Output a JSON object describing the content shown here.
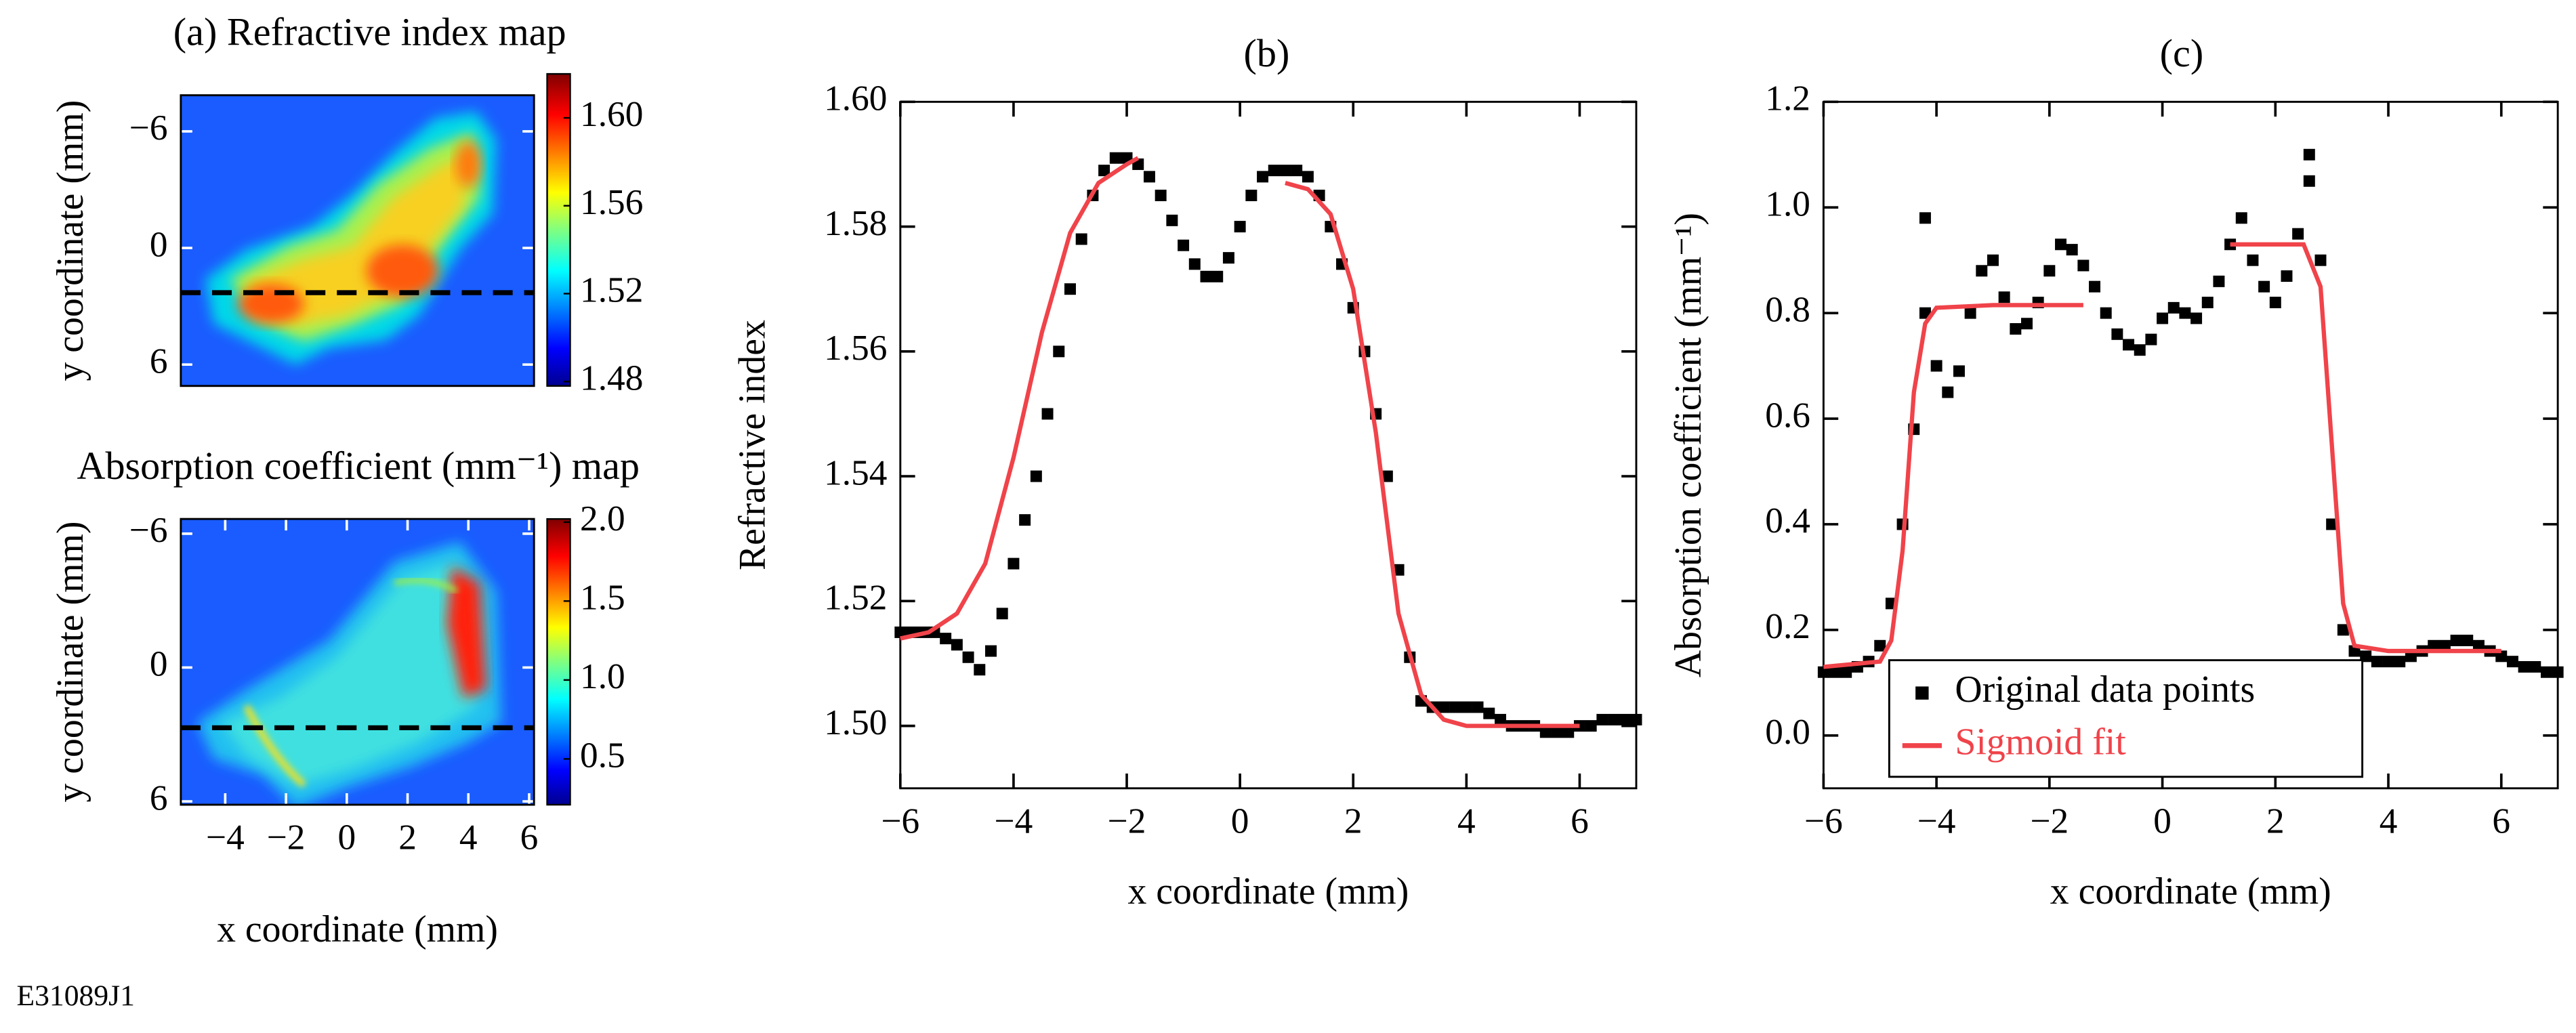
{
  "chart_data": [
    {
      "type": "heatmap",
      "title": "(a) Refractive index map",
      "ylabel": "y coordinate (mm)",
      "xlim": [
        -5.46,
        6.16
      ],
      "ylim": [
        -7.86,
        7.1
      ],
      "yticks": [
        {
          "value": -6,
          "label": "−6"
        },
        0,
        6
      ],
      "colorbar_lim": [
        1.478,
        1.62
      ],
      "colorbar_ticks": [
        {
          "value": 1.48,
          "label": "1.48"
        },
        {
          "value": 1.52,
          "label": "1.52"
        },
        {
          "value": 1.56,
          "label": "1.56"
        },
        {
          "value": 1.6,
          "label": "1.60"
        }
      ],
      "cut_line_y": 2.3
    },
    {
      "type": "heatmap",
      "title": "Absorption coefficient (mm⁻¹) map",
      "ylabel": "y coordinate (mm)",
      "xlabel": "x coordinate (mm)",
      "xlim": [
        -5.46,
        6.16
      ],
      "ylim": [
        -6.66,
        6.15
      ],
      "xticks": [
        {
          "value": -4,
          "label": "−4"
        },
        {
          "value": -2,
          "label": "−2"
        },
        0,
        2,
        4,
        6
      ],
      "yticks": [
        {
          "value": -6,
          "label": "−6"
        },
        0,
        6
      ],
      "colorbar_lim": [
        0.21,
        2.02
      ],
      "colorbar_ticks": [
        0.5,
        {
          "value": 1.0,
          "label": "1.0"
        },
        1.5,
        {
          "value": 2.0,
          "label": "2.0"
        }
      ],
      "cut_line_y": 2.7,
      "annotation": "E31089J1"
    },
    {
      "type": "scatter_line",
      "title": "(b)",
      "xlabel": "x coordinate (mm)",
      "ylabel": "Refractive index",
      "xlim": [
        -6,
        7
      ],
      "ylim": [
        1.49,
        1.6
      ],
      "xticks": [
        {
          "value": -6,
          "label": "−6"
        },
        {
          "value": -4,
          "label": "−4"
        },
        {
          "value": -2,
          "label": "−2"
        },
        0,
        2,
        4,
        6
      ],
      "yticks": [
        {
          "value": 1.5,
          "label": "1.50"
        },
        {
          "value": 1.52,
          "label": "1.52"
        },
        {
          "value": 1.54,
          "label": "1.54"
        },
        {
          "value": 1.56,
          "label": "1.56"
        },
        {
          "value": 1.58,
          "label": "1.58"
        },
        {
          "value": 1.6,
          "label": "1.60"
        }
      ],
      "series": [
        {
          "kind": "points",
          "color": "#000000",
          "x": [
            -6,
            -5.8,
            -5.6,
            -5.4,
            -5.2,
            -5,
            -4.8,
            -4.6,
            -4.4,
            -4.2,
            -4,
            -3.8,
            -3.6,
            -3.4,
            -3.2,
            -3,
            -2.8,
            -2.6,
            -2.4,
            -2.2,
            -2,
            -1.8,
            -1.6,
            -1.4,
            -1.2,
            -1,
            -0.8,
            -0.6,
            -0.4,
            -0.2,
            0,
            0.2,
            0.4,
            0.6,
            0.8,
            1,
            1.2,
            1.4,
            1.6,
            1.8,
            2,
            2.2,
            2.4,
            2.6,
            2.8,
            3,
            3.2,
            3.4,
            3.6,
            3.8,
            4,
            4.2,
            4.4,
            4.6,
            4.8,
            5,
            5.2,
            5.4,
            5.6,
            5.8,
            6,
            6.2,
            6.4,
            6.6,
            6.8,
            7
          ],
          "values": [
            1.515,
            1.515,
            1.515,
            1.515,
            1.514,
            1.513,
            1.511,
            1.509,
            1.512,
            1.518,
            1.526,
            1.533,
            1.54,
            1.55,
            1.56,
            1.57,
            1.578,
            1.585,
            1.589,
            1.591,
            1.591,
            1.59,
            1.588,
            1.585,
            1.581,
            1.577,
            1.574,
            1.572,
            1.572,
            1.575,
            1.58,
            1.585,
            1.588,
            1.589,
            1.589,
            1.589,
            1.588,
            1.585,
            1.58,
            1.574,
            1.567,
            1.56,
            1.55,
            1.54,
            1.525,
            1.511,
            1.504,
            1.503,
            1.503,
            1.503,
            1.503,
            1.503,
            1.502,
            1.501,
            1.5,
            1.5,
            1.5,
            1.499,
            1.499,
            1.499,
            1.5,
            1.5,
            1.501,
            1.501,
            1.501,
            1.501
          ]
        },
        {
          "kind": "line",
          "color": "#f0434a",
          "x": [
            -6,
            -5.5,
            -5,
            -4.5,
            -4,
            -3.5,
            -3,
            -2.5,
            -2,
            -1.8,
            -0.5,
            0.8,
            1.2,
            1.6,
            2,
            2.4,
            2.8,
            3.2,
            3.6,
            4,
            5,
            6
          ],
          "values": [
            1.514,
            1.515,
            1.518,
            1.526,
            1.543,
            1.563,
            1.579,
            1.587,
            1.59,
            1.591,
            null,
            1.587,
            1.586,
            1.582,
            1.57,
            1.547,
            1.518,
            1.505,
            1.501,
            1.5,
            1.5,
            1.5
          ]
        }
      ]
    },
    {
      "type": "scatter_line",
      "title": "(c)",
      "xlabel": "x coordinate (mm)",
      "ylabel": "Absorption coefficient (mm⁻¹)",
      "xlim": [
        -6,
        7
      ],
      "ylim": [
        -0.1,
        1.2
      ],
      "xticks": [
        {
          "value": -6,
          "label": "−6"
        },
        {
          "value": -4,
          "label": "−4"
        },
        {
          "value": -2,
          "label": "−2"
        },
        0,
        2,
        4,
        6
      ],
      "yticks": [
        {
          "value": 0,
          "label": "0.0"
        },
        0.2,
        0.4,
        0.6,
        0.8,
        {
          "value": 1.0,
          "label": "1.0"
        },
        1.2
      ],
      "legend": "bottom-left",
      "series": [
        {
          "kind": "points",
          "name": "Original data points",
          "color": "#000000",
          "x": [
            -6,
            -5.8,
            -5.6,
            -5.4,
            -5.2,
            -5,
            -4.8,
            -4.6,
            -4.4,
            -4.2,
            -4.2,
            -4,
            -3.8,
            -3.6,
            -3.4,
            -3.2,
            -3,
            -2.8,
            -2.6,
            -2.4,
            -2.2,
            -2,
            -1.8,
            -1.6,
            -1.4,
            -1.2,
            -1,
            -0.8,
            -0.6,
            -0.4,
            -0.2,
            0,
            0.2,
            0.4,
            0.6,
            0.8,
            1,
            1.2,
            1.4,
            1.6,
            1.8,
            2,
            2.2,
            2.4,
            2.6,
            2.6,
            2.8,
            3,
            3.2,
            3.4,
            3.6,
            3.8,
            4,
            4.2,
            4.4,
            4.6,
            4.8,
            5,
            5.2,
            5.4,
            5.6,
            5.8,
            6,
            6.2,
            6.4,
            6.6,
            6.8,
            7
          ],
          "values": [
            0.12,
            0.12,
            0.12,
            0.13,
            0.14,
            0.17,
            0.25,
            0.4,
            0.58,
            0.8,
            0.98,
            0.7,
            0.65,
            0.69,
            0.8,
            0.88,
            0.9,
            0.83,
            0.77,
            0.78,
            0.82,
            0.88,
            0.93,
            0.92,
            0.89,
            0.85,
            0.8,
            0.76,
            0.74,
            0.73,
            0.75,
            0.79,
            0.81,
            0.8,
            0.79,
            0.82,
            0.86,
            0.93,
            0.98,
            0.9,
            0.85,
            0.82,
            0.87,
            0.95,
            1.05,
            1.1,
            0.9,
            0.4,
            0.2,
            0.16,
            0.15,
            0.14,
            0.14,
            0.14,
            0.15,
            0.16,
            0.17,
            0.17,
            0.18,
            0.18,
            0.17,
            0.16,
            0.15,
            0.14,
            0.13,
            0.13,
            0.12,
            0.12
          ]
        },
        {
          "kind": "line",
          "name": "Sigmoid fit",
          "color": "#f0434a",
          "x": [
            -6,
            -5,
            -4.8,
            -4.6,
            -4.5,
            -4.4,
            -4.2,
            -4,
            -3,
            -1.4,
            0,
            1.2,
            2.5,
            2.8,
            3,
            3.2,
            3.4,
            4,
            6
          ],
          "values": [
            0.13,
            0.14,
            0.18,
            0.35,
            0.5,
            0.65,
            0.78,
            0.81,
            0.815,
            0.815,
            null,
            0.93,
            0.93,
            0.85,
            0.55,
            0.25,
            0.17,
            0.16,
            0.16
          ]
        }
      ]
    }
  ]
}
